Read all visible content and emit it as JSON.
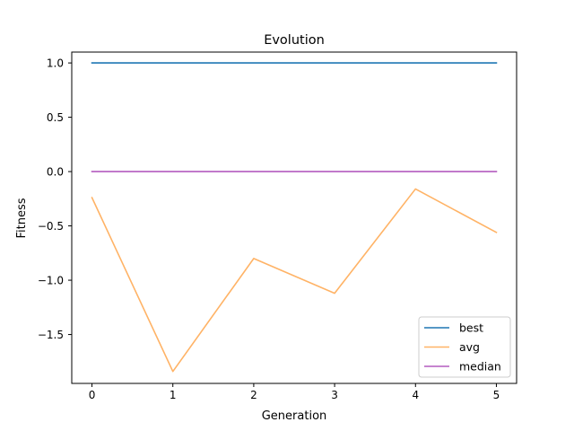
{
  "chart_data": {
    "type": "line",
    "title": "Evolution",
    "xlabel": "Generation",
    "ylabel": "Fitness",
    "x": [
      0,
      1,
      2,
      3,
      4,
      5
    ],
    "xlim": [
      -0.25,
      5.25
    ],
    "ylim": [
      -1.95,
      1.1
    ],
    "xticks": [
      0,
      1,
      2,
      3,
      4,
      5
    ],
    "xtick_labels": [
      "0",
      "1",
      "2",
      "3",
      "4",
      "5"
    ],
    "yticks": [
      1.0,
      0.5,
      0.0,
      -0.5,
      -1.0,
      -1.5
    ],
    "ytick_labels": [
      "1.0",
      "0.5",
      "0.0",
      "−0.5",
      "−1.0",
      "−1.5"
    ],
    "grid": false,
    "legend_position": "lower-right",
    "series": [
      {
        "name": "best",
        "color": "#1f77b4",
        "values": [
          1.0,
          1.0,
          1.0,
          1.0,
          1.0,
          1.0
        ]
      },
      {
        "name": "avg",
        "color": "#ffb366",
        "values": [
          -0.24,
          -1.84,
          -0.8,
          -1.12,
          -0.16,
          -0.56
        ]
      },
      {
        "name": "median",
        "color": "#b35cbf",
        "values": [
          0.0,
          0.0,
          0.0,
          0.0,
          0.0,
          0.0
        ]
      }
    ]
  }
}
